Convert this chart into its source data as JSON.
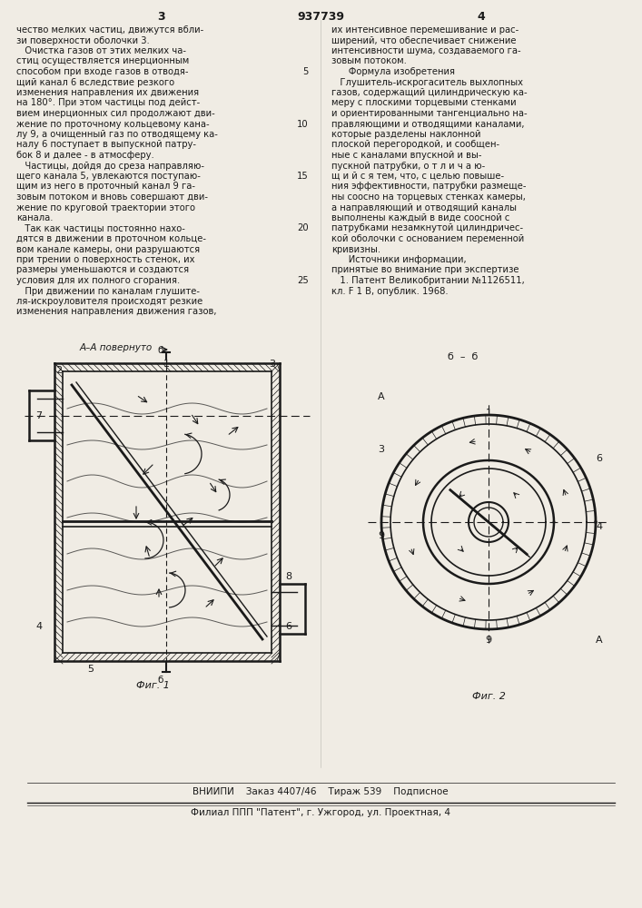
{
  "page_width": 7.07,
  "page_height": 10.0,
  "bg_color": "#f0ece4",
  "text_color": "#1a1a1a",
  "line_color": "#1a1a1a",
  "header_text": "937739",
  "header_page_left": "3",
  "header_page_right": "4",
  "col_left_lines": [
    "чество мелких частиц, движутся вбли-",
    "зи поверхности оболочки 3.",
    "   Очистка газов от этих мелких ча-",
    "стиц осуществляется инерционным",
    "способом при входе газов в отводя-",
    "щий канал 6 вследствие резкого",
    "изменения направления их движения",
    "на 180°. При этом частицы под дейст-",
    "вием инерционных сил продолжают дви-",
    "жение по проточному кольцевому кана-",
    "лу 9, а очищенный газ по отводящему ка-",
    "налу 6 поступает в выпускной патру-",
    "бок 8 и далее - в атмосферу.",
    "   Частицы, дойдя до среза направляю-",
    "щего канала 5, увлекаются поступаю-",
    "щим из него в проточный канал 9 га-",
    "зовым потоком и вновь совершают дви-",
    "жение по круговой траектории этого",
    "канала.",
    "   Так как частицы постоянно нахо-",
    "дятся в движении в проточном кольце-",
    "вом канале камеры, они разрушаются",
    "при трении о поверхность стенок, их",
    "размеры уменьшаются и создаются",
    "условия для их полного сгорания.",
    "   При движении по каналам глушите-",
    "ля-искроуловителя происходят резкие",
    "изменения направления движения газов,"
  ],
  "col_right_lines": [
    "их интенсивное перемешивание и рас-",
    "ширений, что обеспечивает снижение",
    "интенсивности шума, создаваемого га-",
    "зовым потоком.",
    "      Формула изобретения",
    "   Глушитель-искрогаситель выхлопных",
    "газов, содержащий цилиндрическую ка-",
    "меру с плоскими торцевыми стенками",
    "и ориентированными тангенциально на-",
    "правляющими и отводящими каналами,",
    "которые разделены наклонной",
    "плоской перегородкой, и сообщен-",
    "ные с каналами впускной и вы-",
    "пускной патрубки, о т л и ч а ю-",
    "щ и й с я тем, что, с целью повыше-",
    "ния эффективности, патрубки размеще-",
    "ны соосно на торцевых стенках камеры,",
    "а направляющий и отводящий каналы",
    "выполнены каждый в виде соосной с",
    "патрубками незамкнутой цилиндричес-",
    "кой оболочки с основанием переменной",
    "кривизны.",
    "      Источники информации,",
    "принятые во внимание при экспертизе",
    "   1. Патент Великобритании №1126511,",
    "кл. F 1 В, опублик. 1968."
  ],
  "line_numbers_left": [
    "5",
    "10",
    "15",
    "20",
    "25"
  ],
  "footer_line1": "ВНИИПИ    Заказ 4407/46    Тираж 539    Подписное",
  "footer_line2": "Филиал ППП \"Патент\", г. Ужгород, ул. Проектная, 4"
}
